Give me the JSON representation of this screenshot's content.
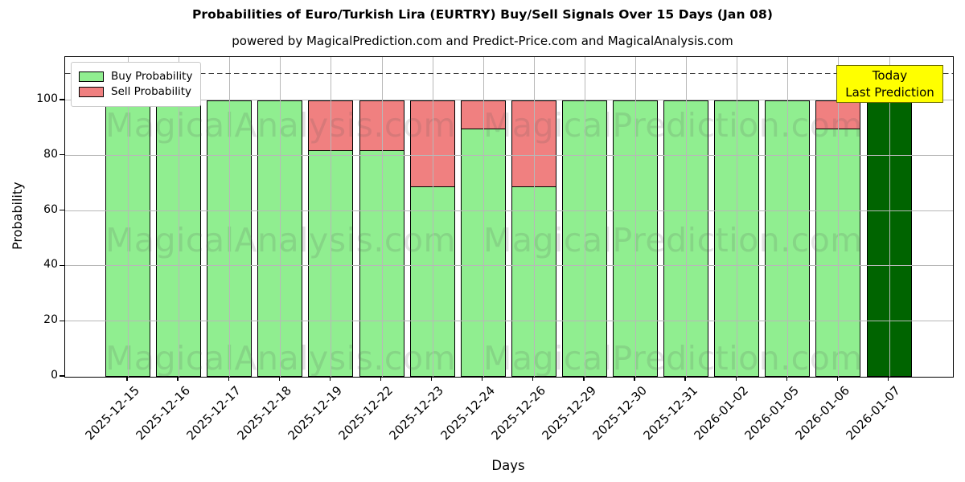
{
  "title": "Probabilities of Euro/Turkish Lira (EURTRY) Buy/Sell Signals Over 15 Days (Jan 08)",
  "subtitle": "powered by MagicalPrediction.com and Predict-Price.com and MagicalAnalysis.com",
  "legend": {
    "items": [
      {
        "label": "Buy Probability",
        "color": "#90EE90"
      },
      {
        "label": "Sell Probability",
        "color": "#F08080"
      }
    ]
  },
  "annotation": {
    "line1": "Today",
    "line2": "Last Prediction",
    "bg": "#FFFF00"
  },
  "watermarks": {
    "left": "MagicalAnalysis.com",
    "right": "MagicalPrediction.com"
  },
  "colors": {
    "buy": "#90EE90",
    "sell": "#F08080",
    "last_bar": "#006400",
    "bar_edge": "#000000",
    "grid": "#b8b8b8",
    "annotation_bg": "#FFFF00",
    "dashed_line": "#3f3f3f"
  },
  "chart_data": {
    "type": "bar",
    "stacked": true,
    "title": "Probabilities of Euro/Turkish Lira (EURTRY) Buy/Sell Signals Over 15 Days (Jan 08)",
    "xlabel": "Days",
    "ylabel": "Probability",
    "ylim": [
      0,
      115.7
    ],
    "yticks": [
      0,
      20,
      40,
      60,
      80,
      100
    ],
    "grid": true,
    "legend_position": "upper left",
    "dashed_threshold_line_y": 110,
    "categories": [
      "2025-12-15",
      "2025-12-16",
      "2025-12-17",
      "2025-12-18",
      "2025-12-19",
      "2025-12-22",
      "2025-12-23",
      "2025-12-24",
      "2025-12-26",
      "2025-12-29",
      "2025-12-30",
      "2025-12-31",
      "2026-01-02",
      "2026-01-05",
      "2026-01-06",
      "2026-01-07"
    ],
    "series": [
      {
        "name": "Buy Probability",
        "color": "#90EE90",
        "values": [
          100,
          100,
          100,
          100,
          82,
          82,
          69,
          90,
          69,
          100,
          100,
          100,
          100,
          100,
          90,
          100
        ]
      },
      {
        "name": "Sell Probability",
        "color": "#F08080",
        "values": [
          0,
          0,
          0,
          0,
          18,
          18,
          31,
          10,
          31,
          0,
          0,
          0,
          0,
          0,
          10,
          0
        ]
      }
    ],
    "highlight_last_bar": {
      "index": 15,
      "color": "#006400",
      "label": "Today Last Prediction"
    }
  }
}
